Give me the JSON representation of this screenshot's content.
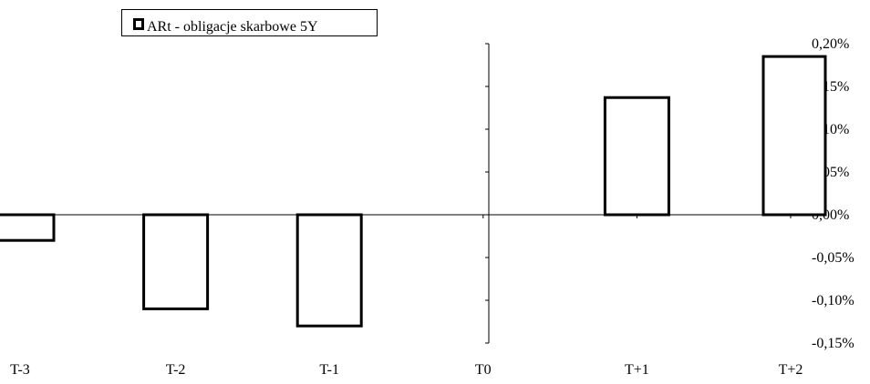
{
  "chart_data": {
    "type": "bar",
    "categories": [
      "T-3",
      "T-2",
      "T-1",
      "T0",
      "T+1",
      "T+2"
    ],
    "series": [
      {
        "name": "ARt - obligacje skarbowe 5Y",
        "values": [
          -0.0003,
          -0.0011,
          -0.0013,
          0.0,
          0.00137,
          0.00185
        ]
      }
    ],
    "ylim": [
      -0.0015,
      0.002
    ],
    "yticks": [
      -0.0015,
      -0.001,
      -0.0005,
      0.0,
      0.0005,
      0.001,
      0.0015,
      0.002
    ],
    "ytick_labels": [
      "-0,15%",
      "-0,10%",
      "-0,05%",
      "0,00%",
      "0,05%",
      "0,10%",
      "0,15%",
      "0,20%"
    ],
    "xtick_labels": [
      "T-3",
      "T-2",
      "T-1",
      "T0",
      "T+1",
      "T+2"
    ],
    "grid": false,
    "legend": "top-left",
    "bar_fill": "#ffffff",
    "bar_stroke": "#000000"
  }
}
